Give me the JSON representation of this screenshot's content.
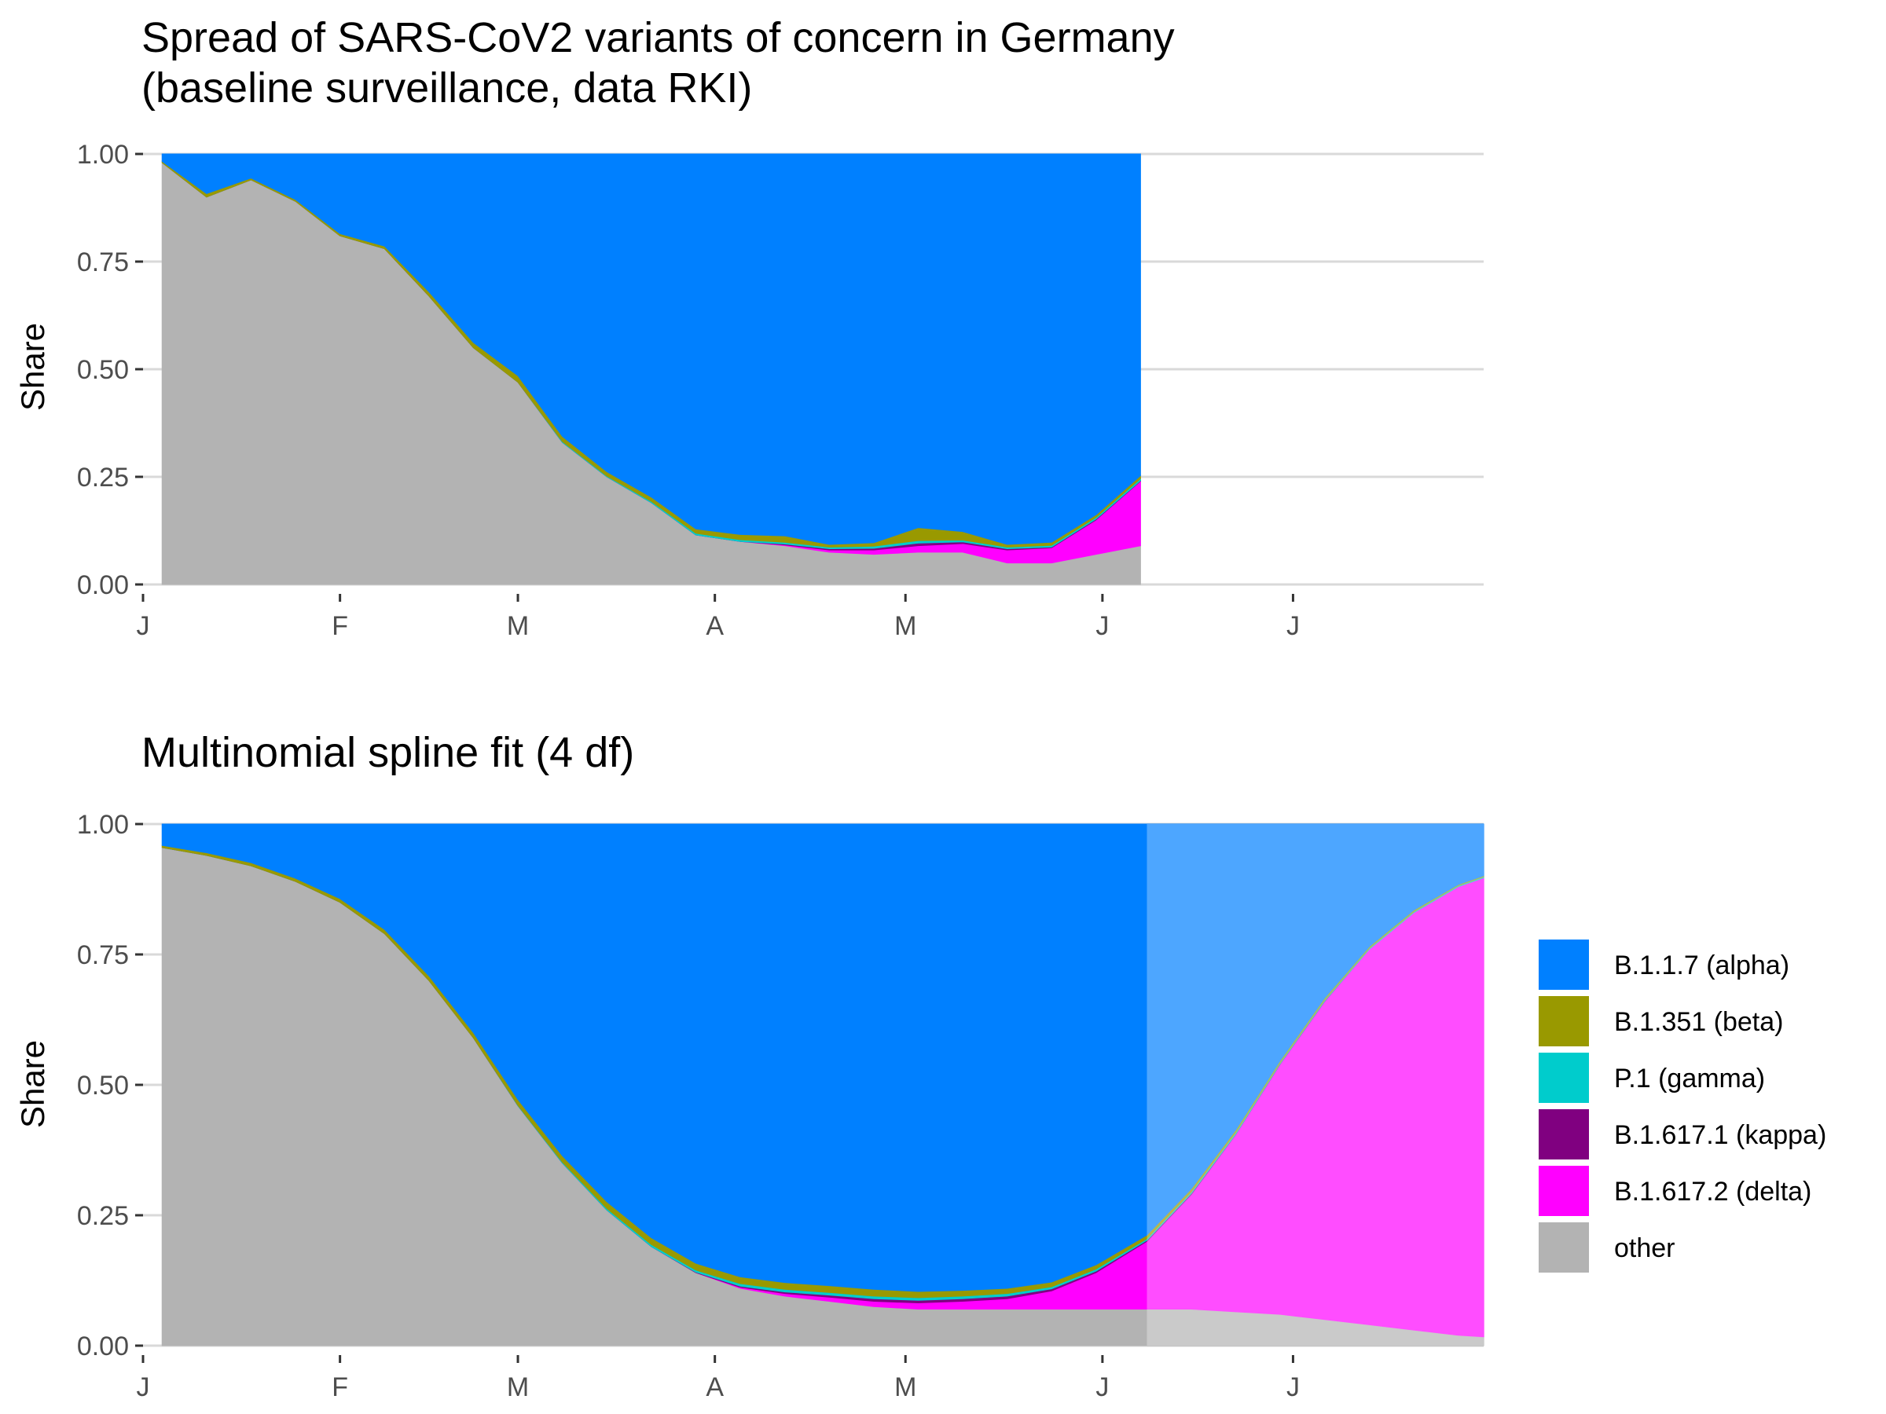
{
  "figure": {
    "panels": [
      {
        "title_lines": [
          "Spread of SARS-CoV2 variants of concern in Germany",
          "(baseline surveillance, data RKI)"
        ],
        "ylabel": "Share"
      },
      {
        "title_lines": [
          "Multinomial spline fit (4 df)"
        ],
        "ylabel": "Share"
      }
    ],
    "legend_title": "",
    "colors": {
      "alpha": "#0080FF",
      "beta": "#999900",
      "gamma": "#00CCCC",
      "kappa": "#800080",
      "delta": "#FF00FF",
      "other": "#B3B3B3",
      "grid": "#D9D9D9",
      "tick": "#333333"
    }
  },
  "chart_data": [
    {
      "type": "area",
      "stacked": true,
      "title": "Spread of SARS-CoV2 variants of concern in Germany (baseline surveillance, data RKI)",
      "xlabel": "",
      "ylabel": "Share",
      "x_axis": "date",
      "xlim": [
        "2021-01-01",
        "2021-07-31"
      ],
      "ylim": [
        0,
        1
      ],
      "y_ticks": [
        "0.00",
        "0.25",
        "0.50",
        "0.75",
        "1.00"
      ],
      "x_ticks": [
        {
          "date": "2021-01-01",
          "label": "J"
        },
        {
          "date": "2021-02-01",
          "label": "F"
        },
        {
          "date": "2021-03-01",
          "label": "M"
        },
        {
          "date": "2021-04-01",
          "label": "A"
        },
        {
          "date": "2021-05-01",
          "label": "M"
        },
        {
          "date": "2021-06-01",
          "label": "J"
        },
        {
          "date": "2021-07-01",
          "label": "J"
        }
      ],
      "grid": true,
      "x": [
        "2021-01-04",
        "2021-01-11",
        "2021-01-18",
        "2021-01-25",
        "2021-02-01",
        "2021-02-08",
        "2021-02-15",
        "2021-02-22",
        "2021-03-01",
        "2021-03-08",
        "2021-03-15",
        "2021-03-22",
        "2021-03-29",
        "2021-04-05",
        "2021-04-12",
        "2021-04-19",
        "2021-04-26",
        "2021-05-03",
        "2021-05-10",
        "2021-05-17",
        "2021-05-24",
        "2021-05-31",
        "2021-06-07"
      ],
      "series": [
        {
          "name": "other",
          "color": "#B3B3B3",
          "values": [
            0.98,
            0.9,
            0.94,
            0.89,
            0.81,
            0.78,
            0.67,
            0.55,
            0.47,
            0.33,
            0.25,
            0.19,
            0.115,
            0.1,
            0.09,
            0.075,
            0.07,
            0.075,
            0.075,
            0.05,
            0.05,
            0.07,
            0.09
          ]
        },
        {
          "name": "B.1.617.2 (delta)",
          "color": "#FF00FF",
          "values": [
            0,
            0,
            0,
            0,
            0,
            0,
            0,
            0,
            0,
            0,
            0,
            0,
            0,
            0,
            0.002,
            0.005,
            0.01,
            0.015,
            0.02,
            0.03,
            0.035,
            0.08,
            0.15
          ]
        },
        {
          "name": "B.1.617.1 (kappa)",
          "color": "#800080",
          "values": [
            0,
            0,
            0,
            0,
            0,
            0,
            0,
            0,
            0,
            0,
            0,
            0,
            0,
            0,
            0.002,
            0.003,
            0.004,
            0.006,
            0.004,
            0.003,
            0.002,
            0.002,
            0.001
          ]
        },
        {
          "name": "P.1 (gamma)",
          "color": "#00CCCC",
          "values": [
            0,
            0,
            0,
            0,
            0,
            0,
            0,
            0,
            0,
            0.002,
            0.002,
            0.003,
            0.004,
            0.004,
            0.004,
            0.004,
            0.005,
            0.006,
            0.004,
            0.004,
            0.004,
            0.004,
            0.005
          ]
        },
        {
          "name": "B.1.351 (beta)",
          "color": "#999900",
          "values": [
            0.003,
            0.008,
            0.004,
            0.004,
            0.005,
            0.006,
            0.01,
            0.012,
            0.015,
            0.012,
            0.01,
            0.01,
            0.01,
            0.012,
            0.015,
            0.006,
            0.008,
            0.03,
            0.02,
            0.006,
            0.007,
            0.006,
            0.007
          ]
        },
        {
          "name": "B.1.1.7 (alpha)",
          "color": "#0080FF",
          "values": [
            0.017,
            0.092,
            0.056,
            0.106,
            0.185,
            0.214,
            0.32,
            0.438,
            0.515,
            0.656,
            0.738,
            0.797,
            0.871,
            0.884,
            0.887,
            0.907,
            0.903,
            0.868,
            0.877,
            0.907,
            0.902,
            0.838,
            0.747
          ]
        }
      ]
    },
    {
      "type": "area",
      "stacked": true,
      "title": "Multinomial spline fit (4 df)",
      "xlabel": "",
      "ylabel": "Share",
      "x_axis": "date",
      "xlim": [
        "2021-01-01",
        "2021-07-31"
      ],
      "ylim": [
        0,
        1
      ],
      "y_ticks": [
        "0.00",
        "0.25",
        "0.50",
        "0.75",
        "1.00"
      ],
      "x_ticks": [
        {
          "date": "2021-01-01",
          "label": "J"
        },
        {
          "date": "2021-02-01",
          "label": "F"
        },
        {
          "date": "2021-03-01",
          "label": "M"
        },
        {
          "date": "2021-04-01",
          "label": "A"
        },
        {
          "date": "2021-05-01",
          "label": "M"
        },
        {
          "date": "2021-06-01",
          "label": "J"
        },
        {
          "date": "2021-07-01",
          "label": "J"
        }
      ],
      "grid": true,
      "fit_data_end": "2021-06-08",
      "x": [
        "2021-01-04",
        "2021-01-11",
        "2021-01-18",
        "2021-01-25",
        "2021-02-01",
        "2021-02-08",
        "2021-02-15",
        "2021-02-22",
        "2021-03-01",
        "2021-03-08",
        "2021-03-15",
        "2021-03-22",
        "2021-03-29",
        "2021-04-05",
        "2021-04-12",
        "2021-04-19",
        "2021-04-26",
        "2021-05-03",
        "2021-05-10",
        "2021-05-17",
        "2021-05-24",
        "2021-05-31",
        "2021-06-08",
        "2021-06-15",
        "2021-06-22",
        "2021-06-29",
        "2021-07-06",
        "2021-07-13",
        "2021-07-20",
        "2021-07-27",
        "2021-07-31"
      ],
      "series": [
        {
          "name": "other",
          "color": "#B3B3B3",
          "values": [
            0.955,
            0.94,
            0.92,
            0.89,
            0.85,
            0.79,
            0.7,
            0.59,
            0.46,
            0.35,
            0.26,
            0.19,
            0.14,
            0.11,
            0.095,
            0.085,
            0.075,
            0.07,
            0.07,
            0.07,
            0.07,
            0.07,
            0.07,
            0.07,
            0.065,
            0.06,
            0.05,
            0.04,
            0.03,
            0.02,
            0.017
          ]
        },
        {
          "name": "B.1.617.2 (delta)",
          "color": "#FF00FF",
          "values": [
            0,
            0,
            0,
            0,
            0,
            0,
            0,
            0,
            0,
            0,
            0,
            0,
            0,
            0.002,
            0.005,
            0.008,
            0.01,
            0.012,
            0.015,
            0.02,
            0.035,
            0.07,
            0.13,
            0.22,
            0.34,
            0.48,
            0.61,
            0.72,
            0.8,
            0.86,
            0.88
          ]
        },
        {
          "name": "B.1.617.1 (kappa)",
          "color": "#800080",
          "values": [
            0,
            0,
            0,
            0,
            0,
            0,
            0,
            0,
            0,
            0,
            0,
            0,
            0.001,
            0.002,
            0.003,
            0.004,
            0.005,
            0.005,
            0.005,
            0.005,
            0.004,
            0.003,
            0.002,
            0.002,
            0.001,
            0.001,
            0.001,
            0,
            0,
            0,
            0
          ]
        },
        {
          "name": "P.1 (gamma)",
          "color": "#00CCCC",
          "values": [
            0,
            0,
            0,
            0,
            0,
            0,
            0,
            0,
            0.001,
            0.002,
            0.003,
            0.004,
            0.004,
            0.005,
            0.005,
            0.005,
            0.005,
            0.005,
            0.005,
            0.005,
            0.004,
            0.004,
            0.003,
            0.003,
            0.003,
            0.002,
            0.002,
            0.002,
            0.002,
            0.002,
            0.002
          ]
        },
        {
          "name": "B.1.351 (beta)",
          "color": "#999900",
          "values": [
            0.004,
            0.005,
            0.006,
            0.006,
            0.007,
            0.008,
            0.009,
            0.01,
            0.011,
            0.012,
            0.013,
            0.013,
            0.013,
            0.013,
            0.013,
            0.013,
            0.013,
            0.012,
            0.011,
            0.01,
            0.009,
            0.008,
            0.007,
            0.006,
            0.005,
            0.004,
            0.004,
            0.003,
            0.003,
            0.002,
            0.002
          ]
        },
        {
          "name": "B.1.1.7 (alpha)",
          "color": "#0080FF",
          "values": [
            0.041,
            0.055,
            0.074,
            0.104,
            0.143,
            0.202,
            0.291,
            0.4,
            0.528,
            0.636,
            0.724,
            0.793,
            0.842,
            0.868,
            0.879,
            0.885,
            0.892,
            0.896,
            0.894,
            0.89,
            0.878,
            0.845,
            0.788,
            0.699,
            0.586,
            0.453,
            0.333,
            0.235,
            0.165,
            0.116,
            0.099
          ]
        }
      ]
    }
  ]
}
